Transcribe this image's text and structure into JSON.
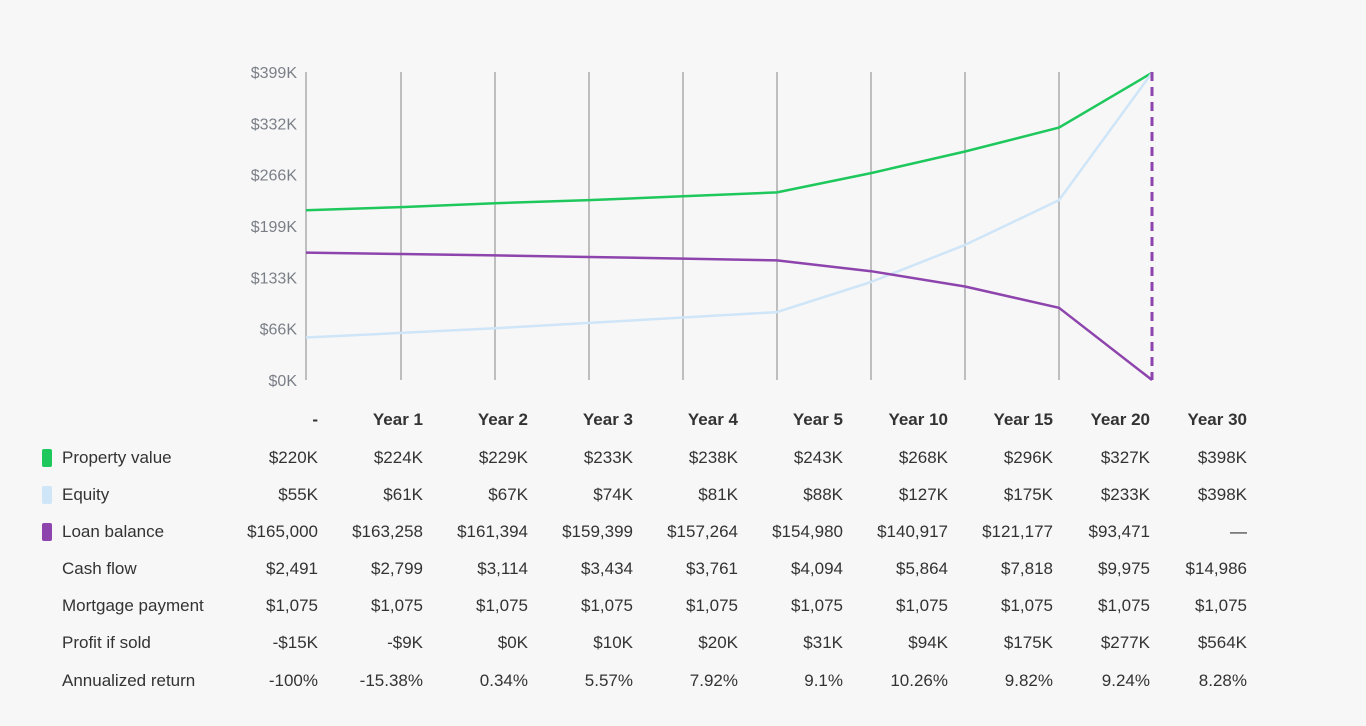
{
  "chart_data": {
    "type": "line",
    "x": [
      "-",
      "Year 1",
      "Year 2",
      "Year 3",
      "Year 4",
      "Year 5",
      "Year 10",
      "Year 15",
      "Year 20",
      "Year 30"
    ],
    "yticks": [
      "$0K",
      "$66K",
      "$133K",
      "$199K",
      "$266K",
      "$332K",
      "$399K"
    ],
    "ylim": [
      0,
      399
    ],
    "series": [
      {
        "name": "Property value",
        "color": "#1ec85c",
        "values": [
          220,
          224,
          229,
          233,
          238,
          243,
          268,
          296,
          327,
          398
        ]
      },
      {
        "name": "Equity",
        "color": "#cfe5f8",
        "values": [
          55,
          61,
          67,
          74,
          81,
          88,
          127,
          175,
          233,
          398
        ]
      },
      {
        "name": "Loan balance",
        "color": "#8e44ad",
        "values": [
          165,
          163.258,
          161.394,
          159.399,
          157.264,
          154.98,
          140.917,
          121.177,
          93.471,
          0
        ]
      }
    ],
    "grid": "vertical lines at each column"
  },
  "table": {
    "headers": [
      "-",
      "Year 1",
      "Year 2",
      "Year 3",
      "Year 4",
      "Year 5",
      "Year 10",
      "Year 15",
      "Year 20",
      "Year 30"
    ],
    "rows": [
      {
        "label": "Property value",
        "swatch": "#1ec85c",
        "cells": [
          "$220K",
          "$224K",
          "$229K",
          "$233K",
          "$238K",
          "$243K",
          "$268K",
          "$296K",
          "$327K",
          "$398K"
        ]
      },
      {
        "label": "Equity",
        "swatch": "#cfe5f8",
        "cells": [
          "$55K",
          "$61K",
          "$67K",
          "$74K",
          "$81K",
          "$88K",
          "$127K",
          "$175K",
          "$233K",
          "$398K"
        ]
      },
      {
        "label": "Loan balance",
        "swatch": "#8e44ad",
        "cells": [
          "$165,000",
          "$163,258",
          "$161,394",
          "$159,399",
          "$157,264",
          "$154,980",
          "$140,917",
          "$121,177",
          "$93,471",
          "—"
        ]
      },
      {
        "label": "Cash flow",
        "swatch": null,
        "cells": [
          "$2,491",
          "$2,799",
          "$3,114",
          "$3,434",
          "$3,761",
          "$4,094",
          "$5,864",
          "$7,818",
          "$9,975",
          "$14,986"
        ]
      },
      {
        "label": "Mortgage payment",
        "swatch": null,
        "cells": [
          "$1,075",
          "$1,075",
          "$1,075",
          "$1,075",
          "$1,075",
          "$1,075",
          "$1,075",
          "$1,075",
          "$1,075",
          "$1,075"
        ]
      },
      {
        "label": "Profit if sold",
        "swatch": null,
        "cells": [
          "-$15K",
          "-$9K",
          "$0K",
          "$10K",
          "$20K",
          "$31K",
          "$94K",
          "$175K",
          "$277K",
          "$564K"
        ]
      },
      {
        "label": "Annualized return",
        "swatch": null,
        "cells": [
          "-100%",
          "-15.38%",
          "0.34%",
          "5.57%",
          "7.92%",
          "9.1%",
          "10.26%",
          "9.82%",
          "9.24%",
          "8.28%"
        ]
      }
    ]
  }
}
